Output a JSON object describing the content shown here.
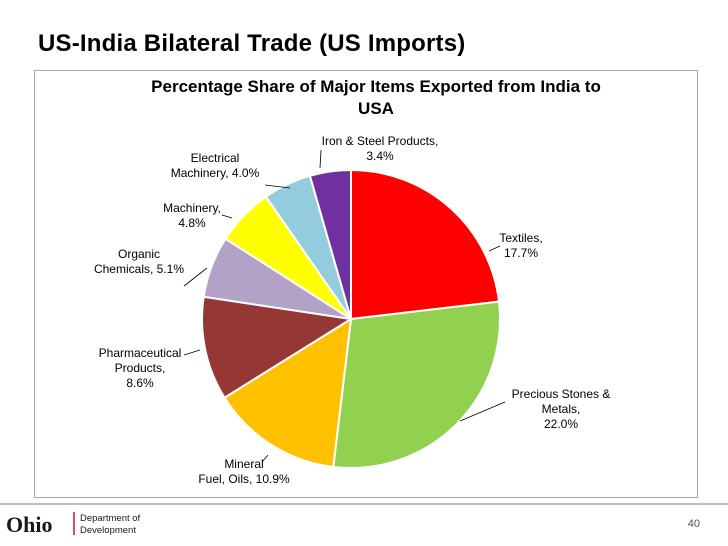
{
  "slide": {
    "title": "US-India Bilateral Trade (US Imports)",
    "page_number": "40"
  },
  "logo": {
    "name": "Ohio",
    "line1": "Department of",
    "line2": "Development"
  },
  "chart_data": {
    "type": "pie",
    "title_line1": "Percentage Share of Major Items Exported from India to",
    "title_line2": "USA",
    "series": [
      {
        "name": "Textiles",
        "value": 17.7,
        "color": "#ff0000",
        "label_lines": [
          "Textiles,",
          "17.7%"
        ]
      },
      {
        "name": "Precious Stones & Metals",
        "value": 22.0,
        "color": "#92d050",
        "label_lines": [
          "Precious Stones &",
          "Metals,",
          "22.0%"
        ]
      },
      {
        "name": "Mineral Fuel, Oils",
        "value": 10.9,
        "color": "#ffc000",
        "label_lines": [
          "Mineral",
          "Fuel, Oils, 10.9%"
        ]
      },
      {
        "name": "Pharmaceutical Products",
        "value": 8.6,
        "color": "#953735",
        "label_lines": [
          "Pharmaceutical",
          "Products,",
          "8.6%"
        ]
      },
      {
        "name": "Organic Chemicals",
        "value": 5.1,
        "color": "#b3a2c7",
        "label_lines": [
          "Organic",
          "Chemicals, 5.1%"
        ]
      },
      {
        "name": "Machinery",
        "value": 4.8,
        "color": "#ffff00",
        "label_lines": [
          "Machinery,",
          "4.8%"
        ]
      },
      {
        "name": "Electrical Machinery",
        "value": 4.0,
        "color": "#93cddd",
        "label_lines": [
          "Electrical",
          "Machinery, 4.0%"
        ]
      },
      {
        "name": "Iron & Steel Products",
        "value": 3.4,
        "color": "#7030a0",
        "label_lines": [
          "Iron & Steel Products,",
          "3.4%"
        ]
      }
    ]
  }
}
